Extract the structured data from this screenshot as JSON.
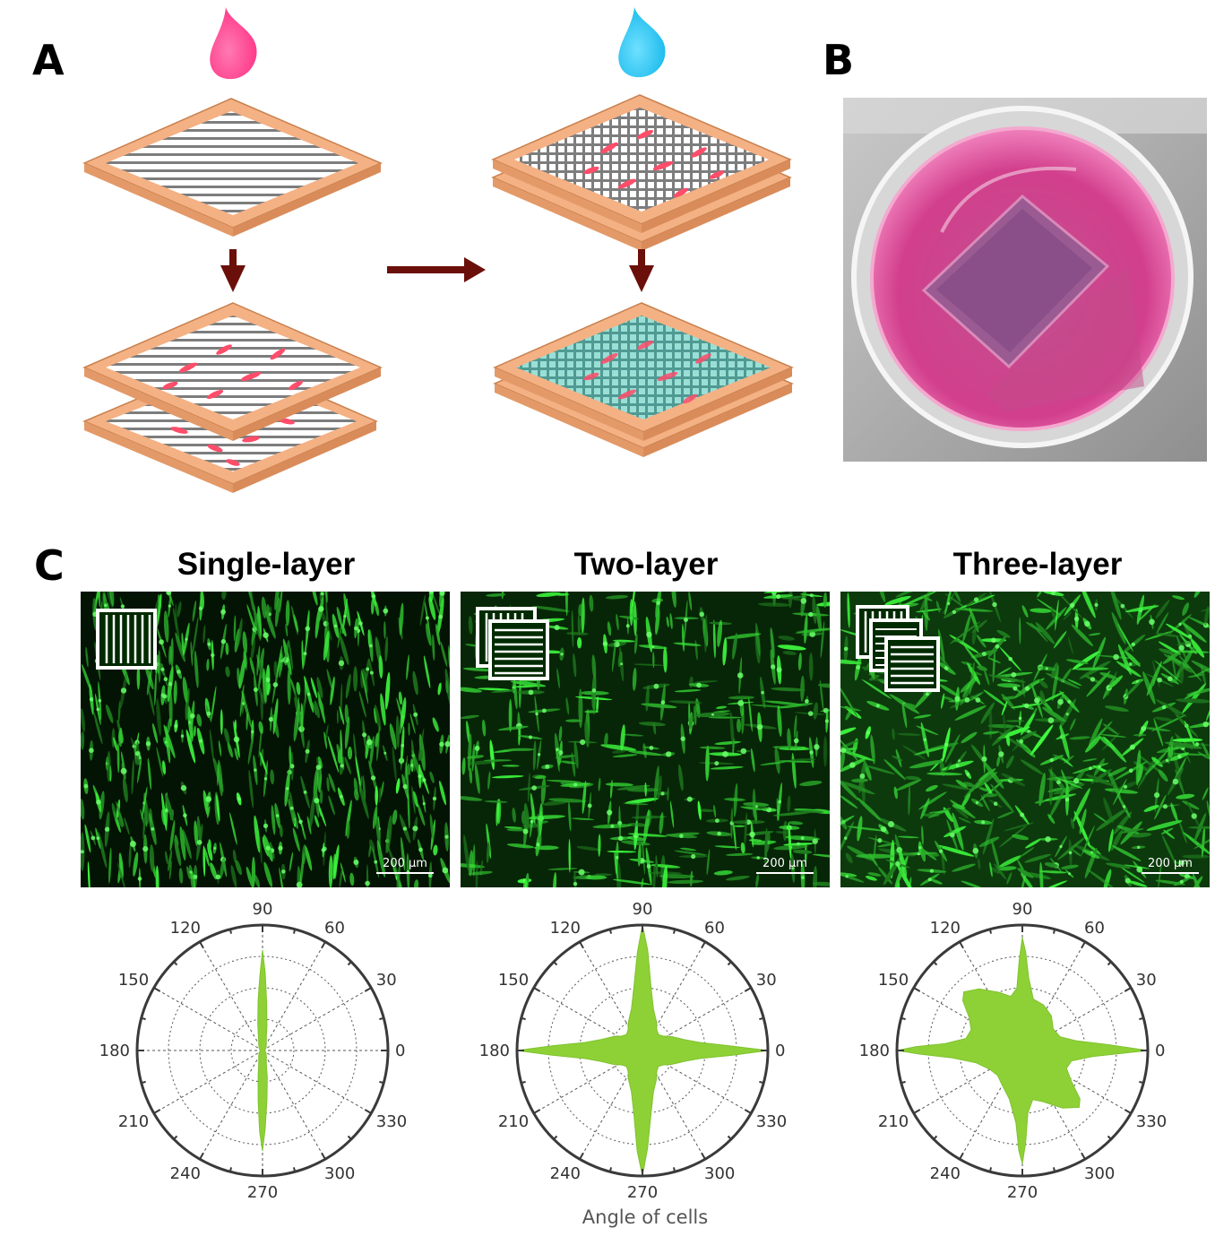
{
  "panels": {
    "a": {
      "letter": "A"
    },
    "b": {
      "letter": "B"
    },
    "c": {
      "letter": "C"
    }
  },
  "columns": [
    {
      "title": "Single-layer",
      "scale_label": "200 µm"
    },
    {
      "title": "Two-layer",
      "scale_label": "200 µm"
    },
    {
      "title": "Three-layer",
      "scale_label": "200 µm"
    }
  ],
  "polar_axis_labels": [
    "90",
    "60",
    "30",
    "0",
    "330",
    "300",
    "270",
    "240",
    "210",
    "180",
    "150",
    "120"
  ],
  "x_axis_title": "Angle of cells",
  "colors": {
    "frame": "#f0a878",
    "frame_edge": "#c8804e",
    "ink_pink": "#ff3d8c",
    "ink_blue": "#22c4f0",
    "arrow": "#6b0f0a",
    "fluor_green": "#33dd33",
    "polar_fill": "#8ed136"
  },
  "chart_data": [
    {
      "type": "polar",
      "title": "Single-layer",
      "theta_ticks": [
        0,
        30,
        60,
        90,
        120,
        150,
        180,
        210,
        240,
        270,
        300,
        330
      ],
      "angles": [
        0,
        15,
        30,
        45,
        60,
        75,
        80,
        85,
        88,
        90,
        92,
        95,
        100,
        105,
        120,
        135,
        150,
        165,
        180,
        195,
        210,
        225,
        240,
        255,
        260,
        265,
        268,
        270,
        272,
        275,
        280,
        285,
        300,
        315,
        330,
        345
      ],
      "values": [
        0.02,
        0.02,
        0.03,
        0.04,
        0.06,
        0.12,
        0.2,
        0.38,
        0.62,
        0.8,
        0.6,
        0.4,
        0.22,
        0.13,
        0.06,
        0.04,
        0.03,
        0.02,
        0.02,
        0.02,
        0.03,
        0.04,
        0.06,
        0.12,
        0.2,
        0.4,
        0.65,
        0.8,
        0.62,
        0.4,
        0.22,
        0.12,
        0.06,
        0.04,
        0.03,
        0.02
      ]
    },
    {
      "type": "polar",
      "title": "Two-layer",
      "theta_ticks": [
        0,
        30,
        60,
        90,
        120,
        150,
        180,
        210,
        240,
        270,
        300,
        330
      ],
      "angles": [
        0,
        3,
        8,
        15,
        25,
        35,
        45,
        55,
        65,
        75,
        82,
        87,
        90,
        93,
        98,
        105,
        115,
        125,
        135,
        145,
        155,
        165,
        172,
        177,
        180,
        183,
        188,
        195,
        205,
        215,
        225,
        235,
        245,
        255,
        262,
        267,
        270,
        273,
        278,
        285,
        295,
        305,
        315,
        325,
        335,
        345,
        352,
        357
      ],
      "values": [
        1.0,
        0.7,
        0.46,
        0.34,
        0.26,
        0.2,
        0.18,
        0.2,
        0.26,
        0.34,
        0.5,
        0.8,
        1.0,
        0.78,
        0.5,
        0.34,
        0.26,
        0.2,
        0.18,
        0.2,
        0.26,
        0.34,
        0.46,
        0.72,
        1.0,
        0.72,
        0.46,
        0.34,
        0.26,
        0.2,
        0.18,
        0.2,
        0.26,
        0.34,
        0.5,
        0.8,
        1.0,
        0.78,
        0.5,
        0.34,
        0.26,
        0.2,
        0.18,
        0.2,
        0.26,
        0.34,
        0.46,
        0.72
      ]
    },
    {
      "type": "polar",
      "title": "Three-layer",
      "theta_ticks": [
        0,
        30,
        60,
        90,
        120,
        150,
        180,
        210,
        240,
        270,
        300,
        330
      ],
      "angles": [
        0,
        4,
        10,
        20,
        35,
        50,
        65,
        78,
        85,
        88,
        90,
        92,
        95,
        102,
        112,
        125,
        135,
        140,
        148,
        158,
        168,
        175,
        178,
        180,
        182,
        186,
        195,
        210,
        225,
        240,
        255,
        265,
        268,
        270,
        272,
        275,
        282,
        292,
        305,
        315,
        320,
        328,
        338,
        348,
        355
      ],
      "values": [
        1.0,
        0.68,
        0.44,
        0.32,
        0.3,
        0.36,
        0.4,
        0.42,
        0.58,
        0.78,
        0.9,
        0.72,
        0.5,
        0.44,
        0.5,
        0.6,
        0.66,
        0.62,
        0.5,
        0.44,
        0.46,
        0.62,
        0.85,
        1.0,
        0.82,
        0.56,
        0.38,
        0.3,
        0.28,
        0.32,
        0.4,
        0.58,
        0.8,
        0.9,
        0.74,
        0.5,
        0.4,
        0.44,
        0.56,
        0.64,
        0.6,
        0.46,
        0.38,
        0.4,
        0.56
      ]
    }
  ]
}
